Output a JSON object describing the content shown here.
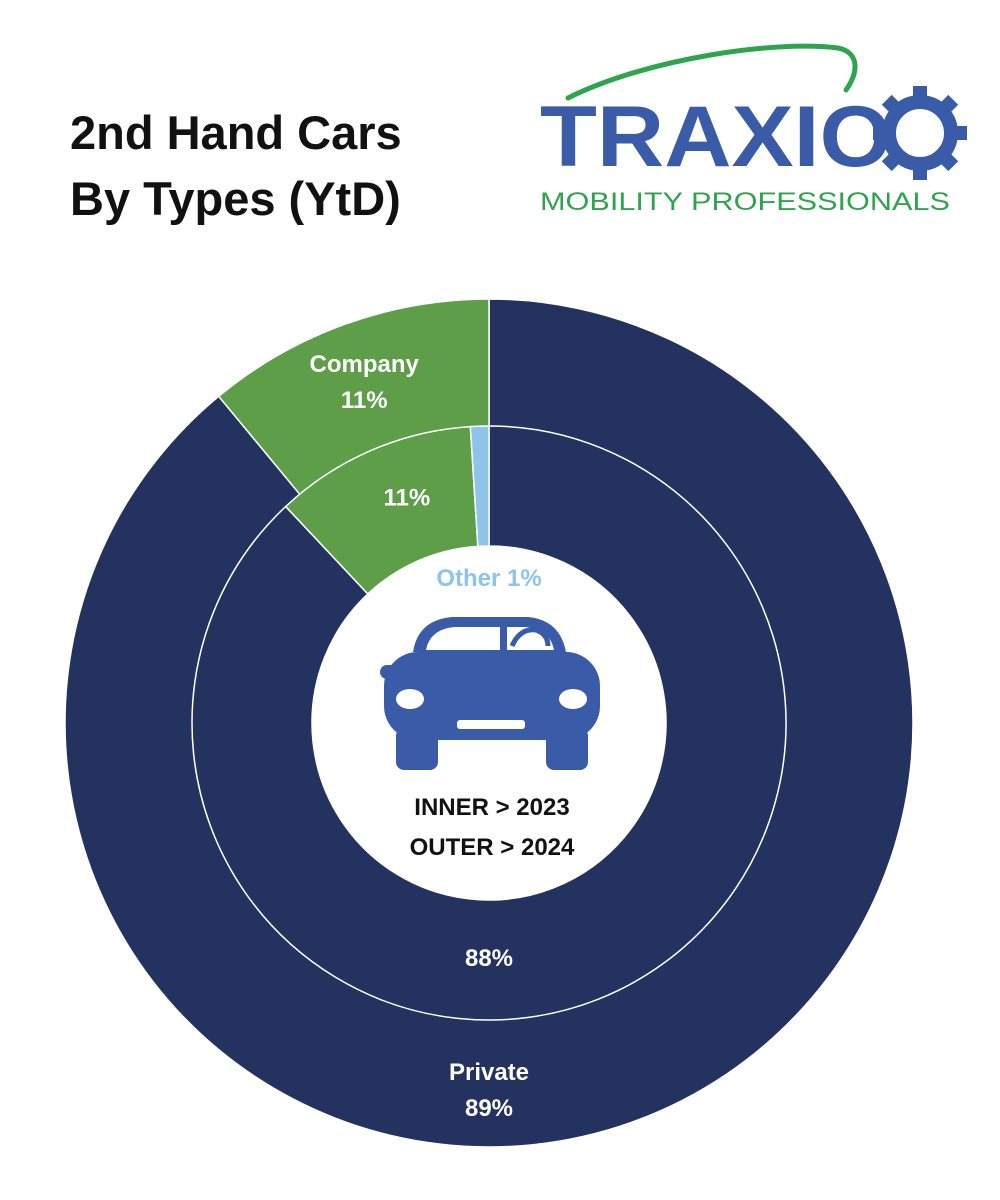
{
  "title": {
    "line1": "2nd Hand Cars",
    "line2": "By Types (YtD)"
  },
  "logo": {
    "name": "TRAXIO",
    "tagline": "MOBILITY PROFESSIONALS",
    "colors": {
      "wordmark": "#3a5ba8",
      "swoosh": "#2ea44f",
      "tagline": "#2ea44f"
    }
  },
  "center": {
    "icon": "car-icon",
    "line1": "INNER > 2023",
    "line2": "OUTER > 2024"
  },
  "chart_data": {
    "type": "pie",
    "subtype": "nested-donut",
    "rings": [
      {
        "ring": "outer",
        "year": "2024",
        "slices": [
          {
            "name": "Private",
            "value": 89,
            "label": "89%",
            "color": "#23325f"
          },
          {
            "name": "Company",
            "value": 11,
            "label": "11%",
            "color": "#5e9e49"
          }
        ]
      },
      {
        "ring": "inner",
        "year": "2023",
        "slices": [
          {
            "name": "Private",
            "value": 88,
            "label": "88%",
            "color": "#23325f"
          },
          {
            "name": "Company",
            "value": 11,
            "label": "11%",
            "color": "#5e9e49"
          },
          {
            "name": "Other",
            "value": 1,
            "label": "Other 1%",
            "color": "#8ec3ea"
          }
        ]
      }
    ]
  }
}
